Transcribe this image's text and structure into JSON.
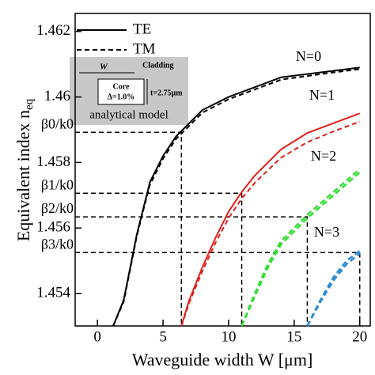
{
  "chart_data": {
    "type": "line",
    "xlabel": "Waveguide width W [μm]",
    "ylabel": "Equivalent index n",
    "ylabel_sub": "eq",
    "xlim": [
      -1.7,
      20.8
    ],
    "ylim": [
      1.45301,
      1.46255
    ],
    "xticks": [
      0,
      5,
      10,
      15,
      20
    ],
    "yticks": [
      1.462,
      1.46,
      1.458,
      1.456,
      1.454
    ],
    "modes": [
      "TE",
      "TM"
    ],
    "series": [
      {
        "name": "N=0",
        "color": "#000000",
        "style": "solid",
        "x": [
          1.2,
          2,
          2.5,
          3,
          3.5,
          4,
          5,
          6,
          7,
          8,
          10,
          12,
          14,
          16,
          18,
          20
        ],
        "te": [
          1.45301,
          1.4538,
          1.4548,
          1.4558,
          1.4566,
          1.4574,
          1.4582,
          1.4588,
          1.4592,
          1.4596,
          1.46,
          1.4603,
          1.4606,
          1.4607,
          1.4608,
          1.4609
        ],
        "tm": [
          1.45301,
          1.45375,
          1.45475,
          1.45575,
          1.45655,
          1.45732,
          1.45812,
          1.45872,
          1.45912,
          1.45952,
          1.45993,
          1.46023,
          1.46053,
          1.46064,
          1.46075,
          1.46085
        ]
      },
      {
        "name": "N=1",
        "color": "#e0201b",
        "style": "solid",
        "x": [
          6.4,
          7,
          8,
          9,
          10,
          11,
          12,
          14,
          16,
          18,
          20
        ],
        "te": [
          1.45301,
          1.4538,
          1.4548,
          1.4557,
          1.4565,
          1.4571,
          1.4576,
          1.4584,
          1.4589,
          1.4592,
          1.4595
        ],
        "tm": [
          1.45301,
          1.45372,
          1.45468,
          1.45555,
          1.4563,
          1.4569,
          1.45738,
          1.45815,
          1.45862,
          1.45895,
          1.45925
        ]
      },
      {
        "name": "N=2",
        "color": "#33dd33",
        "style": "dashed",
        "x": [
          11,
          12,
          13,
          14,
          15,
          16,
          18,
          20
        ],
        "te": [
          1.45301,
          1.454,
          1.4549,
          1.4556,
          1.456,
          1.4564,
          1.4571,
          1.4578
        ],
        "tm": [
          1.45301,
          1.45392,
          1.4548,
          1.4555,
          1.4559,
          1.4563,
          1.457,
          1.4577
        ]
      },
      {
        "name": "N=3",
        "color": "#2a8ad4",
        "style": "dashed",
        "x": [
          16,
          17,
          18,
          19,
          20
        ],
        "te": [
          1.45301,
          1.4538,
          1.4545,
          1.455,
          1.4553
        ],
        "tm": [
          1.45301,
          1.45375,
          1.4544,
          1.4549,
          1.45522
        ]
      }
    ],
    "guides": [
      {
        "label": "β0/k0",
        "x": 6.4,
        "y": 1.45892
      },
      {
        "label": "β1/k0",
        "x": 11,
        "y": 1.45706
      },
      {
        "label": "β2/k0",
        "x": 16,
        "y": 1.45634
      },
      {
        "label": "β3/k0",
        "x": 20,
        "y": 1.45525
      }
    ],
    "inset": {
      "width": "W",
      "cladding": "Cladding",
      "core": "Core",
      "delta": "Δ=1.0%",
      "thickness": "t=2.75μm",
      "caption": "analytical model"
    }
  }
}
